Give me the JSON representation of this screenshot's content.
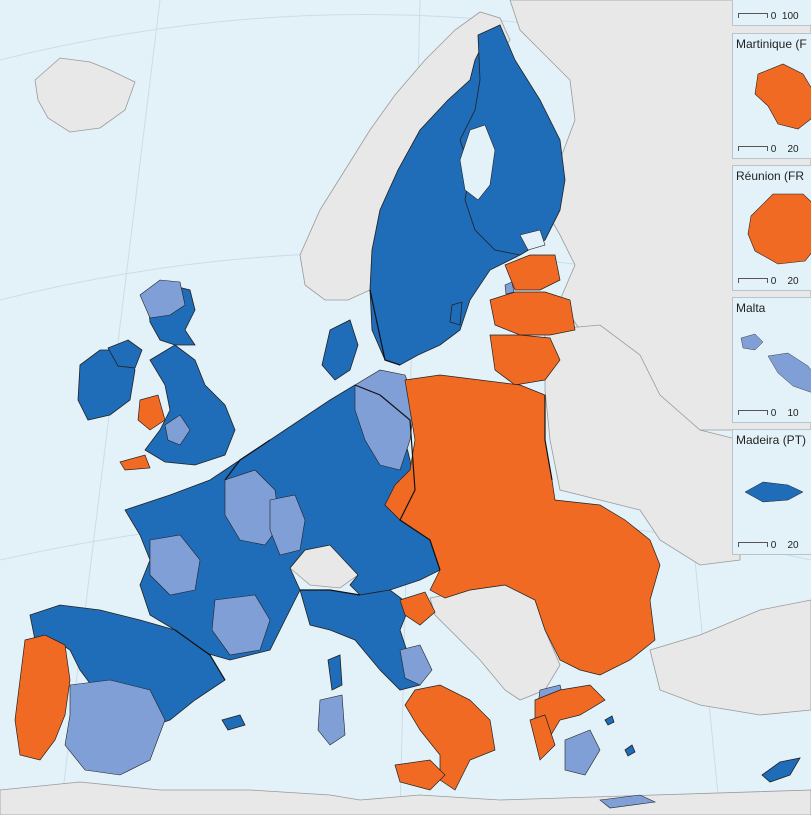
{
  "colors": {
    "sea": "#e3f2f9",
    "land_other": "#e8e8e8",
    "high": "#1f6cb9",
    "medium": "#7f9fd6",
    "low": "#f06a23",
    "border": "#222222"
  },
  "insets": [
    {
      "name": "",
      "scale_min": "0",
      "scale_max": "100"
    },
    {
      "name": "Martinique (F",
      "scale_min": "0",
      "scale_max": "20",
      "color": "#f06a23"
    },
    {
      "name": "Réunion (FR",
      "scale_min": "0",
      "scale_max": "20",
      "color": "#f06a23"
    },
    {
      "name": "Malta",
      "scale_min": "0",
      "scale_max": "10",
      "color": "#7f9fd6"
    },
    {
      "name": "Madeira (PT)",
      "scale_min": "0",
      "scale_max": "20",
      "color": "#1f6cb9"
    }
  ]
}
